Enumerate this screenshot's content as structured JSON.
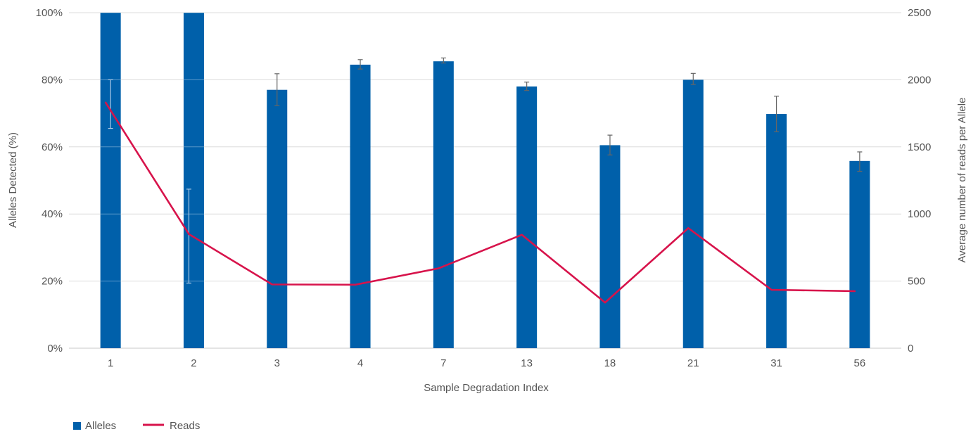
{
  "chart_data": {
    "type": "bar",
    "xlabel": "Sample Degradation Index",
    "ylabel": "Alleles Detected (%)",
    "y2label": "Average number of reads per Allele",
    "categories": [
      "1",
      "2",
      "3",
      "4",
      "7",
      "13",
      "18",
      "21",
      "31",
      "56"
    ],
    "ylim": [
      0,
      100
    ],
    "y_ticks": [
      "0%",
      "20%",
      "40%",
      "60%",
      "80%",
      "100%"
    ],
    "y2lim": [
      0,
      2500
    ],
    "y2_ticks": [
      "0",
      "500",
      "1000",
      "1500",
      "2000",
      "2500"
    ],
    "grid": true,
    "legend_position": "bottom-left",
    "series": [
      {
        "name": "Alleles",
        "kind": "bar",
        "axis": "left",
        "color": "#0060AA",
        "values": [
          100,
          100,
          77,
          84.5,
          85.5,
          78,
          60.5,
          80,
          69.8,
          55.8
        ],
        "error_low": [
          65.5,
          100,
          72.3,
          83.2,
          85,
          76.8,
          57.6,
          78.6,
          64.5,
          52.7
        ],
        "error_high": [
          80,
          100,
          81.8,
          86,
          86.5,
          79.3,
          63.5,
          81.9,
          75.1,
          58.5
        ]
      },
      {
        "name": "Reads",
        "kind": "line",
        "axis": "right",
        "color": "#D7134B",
        "values": [
          1830,
          850,
          475,
          473,
          595,
          845,
          340,
          895,
          435,
          425
        ],
        "error_low": [
          null,
          485,
          null,
          null,
          null,
          null,
          null,
          null,
          null,
          null
        ],
        "error_high": [
          null,
          1185,
          null,
          null,
          null,
          null,
          null,
          null,
          null,
          null
        ]
      }
    ]
  }
}
